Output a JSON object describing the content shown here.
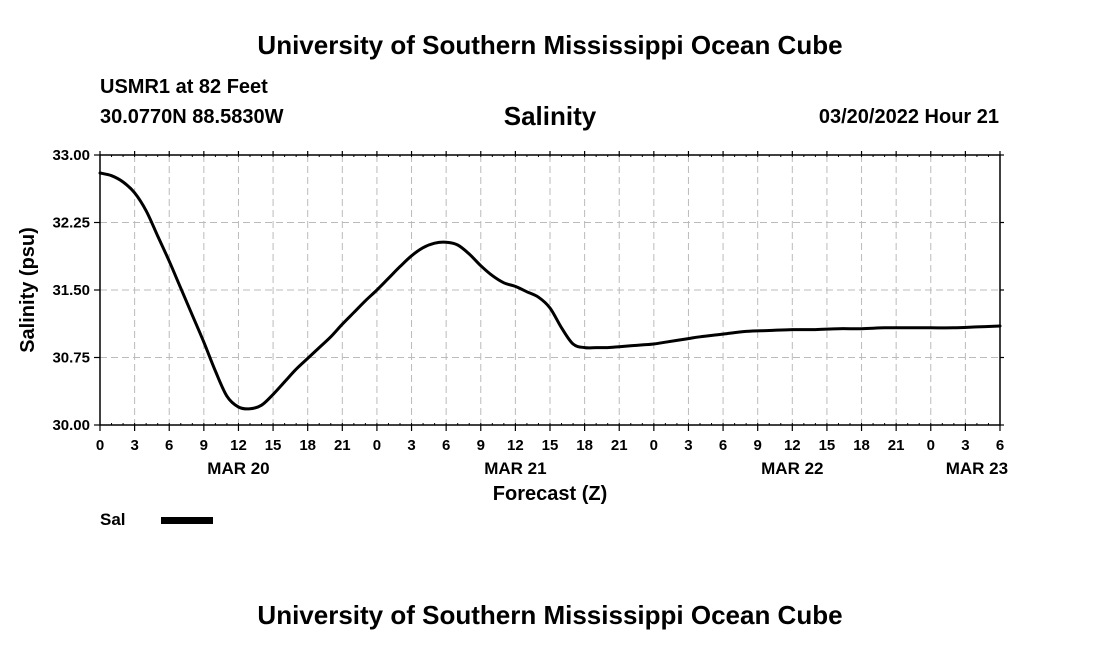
{
  "header": {
    "title": "University of Southern Mississippi Ocean Cube",
    "station": "USMR1 at 82 Feet",
    "coordinates": "30.0770N  88.5830W",
    "forecast_time": "03/20/2022 Hour 21"
  },
  "footer": {
    "title": "University of Southern Mississippi Ocean Cube"
  },
  "legend": {
    "label": "Sal"
  },
  "chart_data": {
    "type": "line",
    "title": "Salinity",
    "xlabel": "Forecast (Z)",
    "ylabel": "Salinity (psu)",
    "ylim": [
      30.0,
      33.0
    ],
    "yticks": [
      "30.00",
      "30.75",
      "31.50",
      "32.25",
      "33.00"
    ],
    "xlim": [
      0,
      78
    ],
    "xticks": [
      0,
      3,
      6,
      9,
      12,
      15,
      18,
      21,
      24,
      27,
      30,
      33,
      36,
      39,
      42,
      45,
      48,
      51,
      54,
      57,
      60,
      63,
      66,
      69,
      72,
      75,
      78
    ],
    "xtick_labels": [
      "0",
      "3",
      "6",
      "9",
      "12",
      "15",
      "18",
      "21",
      "0",
      "3",
      "6",
      "9",
      "12",
      "15",
      "18",
      "21",
      "0",
      "3",
      "6",
      "9",
      "12",
      "15",
      "18",
      "21",
      "0",
      "3",
      "6"
    ],
    "day_labels": [
      {
        "hour": 12,
        "label": "MAR 20"
      },
      {
        "hour": 36,
        "label": "MAR 21"
      },
      {
        "hour": 60,
        "label": "MAR 22"
      },
      {
        "hour": 76,
        "label": "MAR 23"
      }
    ],
    "grid": true,
    "series": [
      {
        "name": "Sal",
        "x": [
          0,
          1,
          2,
          3,
          4,
          5,
          6,
          7,
          8,
          9,
          10,
          11,
          12,
          13,
          14,
          15,
          16,
          17,
          18,
          19,
          20,
          21,
          22,
          23,
          24,
          25,
          26,
          27,
          28,
          29,
          30,
          31,
          32,
          33,
          34,
          35,
          36,
          37,
          38,
          39,
          40,
          41,
          42,
          43,
          44,
          45,
          46,
          47,
          48,
          49,
          50,
          51,
          52,
          54,
          56,
          58,
          60,
          62,
          64,
          66,
          68,
          70,
          72,
          74,
          76,
          78
        ],
        "values": [
          32.8,
          32.77,
          32.7,
          32.58,
          32.38,
          32.1,
          31.82,
          31.52,
          31.22,
          30.92,
          30.6,
          30.32,
          30.2,
          30.18,
          30.22,
          30.34,
          30.48,
          30.62,
          30.74,
          30.86,
          30.98,
          31.12,
          31.25,
          31.38,
          31.5,
          31.63,
          31.76,
          31.88,
          31.97,
          32.02,
          32.03,
          32.0,
          31.9,
          31.77,
          31.66,
          31.58,
          31.54,
          31.48,
          31.42,
          31.3,
          31.08,
          30.9,
          30.86,
          30.86,
          30.86,
          30.87,
          30.88,
          30.89,
          30.9,
          30.92,
          30.94,
          30.96,
          30.98,
          31.01,
          31.04,
          31.05,
          31.06,
          31.06,
          31.07,
          31.07,
          31.08,
          31.08,
          31.08,
          31.08,
          31.09,
          31.1
        ]
      }
    ]
  }
}
